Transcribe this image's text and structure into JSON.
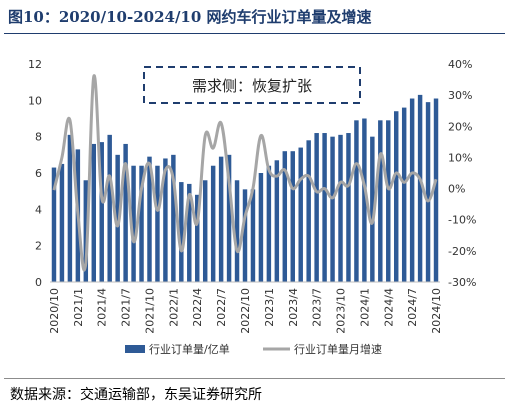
{
  "title": "图10：2020/10-2024/10 网约车行业订单量及增速",
  "source": "数据来源：交通运输部，东吴证券研究所",
  "chart_data": {
    "type": "bar+line",
    "annotation": "需求侧：恢复扩张",
    "x_tick_labels": [
      "2020/10",
      "2021/1",
      "2021/4",
      "2021/7",
      "2021/10",
      "2022/1",
      "2022/4",
      "2022/7",
      "2022/10",
      "2023/1",
      "2023/4",
      "2023/7",
      "2023/10",
      "2024/1",
      "2024/4",
      "2024/7",
      "2024/10"
    ],
    "categories": [
      "2020/10",
      "2020/11",
      "2020/12",
      "2021/1",
      "2021/2",
      "2021/3",
      "2021/4",
      "2021/5",
      "2021/6",
      "2021/7",
      "2021/8",
      "2021/9",
      "2021/10",
      "2021/11",
      "2021/12",
      "2022/1",
      "2022/2",
      "2022/3",
      "2022/4",
      "2022/5",
      "2022/6",
      "2022/7",
      "2022/8",
      "2022/9",
      "2022/10",
      "2022/11",
      "2022/12",
      "2023/1",
      "2023/2",
      "2023/3",
      "2023/4",
      "2023/5",
      "2023/6",
      "2023/7",
      "2023/8",
      "2023/9",
      "2023/10",
      "2023/11",
      "2023/12",
      "2024/1",
      "2024/2",
      "2024/3",
      "2024/4",
      "2024/5",
      "2024/6",
      "2024/7",
      "2024/8",
      "2024/9",
      "2024/10"
    ],
    "series": [
      {
        "name": "行业订单量/亿单",
        "axis": "left",
        "color": "#2e5a96",
        "values": [
          6.3,
          6.5,
          8.1,
          7.3,
          5.6,
          7.6,
          7.7,
          8.1,
          7.0,
          7.6,
          6.4,
          6.4,
          6.9,
          6.4,
          6.8,
          7.0,
          5.5,
          5.4,
          4.8,
          5.6,
          6.4,
          6.9,
          7.0,
          5.6,
          5.1,
          5.1,
          6.0,
          6.4,
          6.7,
          7.2,
          7.2,
          7.4,
          7.8,
          8.2,
          8.2,
          8.0,
          8.1,
          8.2,
          8.9,
          9.0,
          8.0,
          8.9,
          8.9,
          9.4,
          9.6,
          10.1,
          10.3,
          9.9,
          10.1
        ]
      },
      {
        "name": "行业订单量月增速",
        "axis": "right",
        "color": "#a6a6a6",
        "values": [
          -0.5,
          10.0,
          22.0,
          -8.0,
          -24.0,
          36.0,
          -3.0,
          4.0,
          -12.0,
          8.0,
          -17.0,
          0.0,
          8.0,
          -7.0,
          6.0,
          3.0,
          -20.0,
          -2.0,
          -11.0,
          17.0,
          13.0,
          21.0,
          2.0,
          -20.0,
          -9.0,
          0.0,
          17.0,
          6.0,
          4.0,
          6.0,
          0.0,
          3.0,
          4.0,
          -1.0,
          0.0,
          -3.0,
          2.0,
          1.0,
          8.0,
          1.0,
          -11.0,
          11.0,
          0.0,
          5.0,
          2.0,
          5.0,
          3.0,
          -4.0,
          3.0
        ]
      }
    ],
    "y_left": {
      "min": 0,
      "max": 12,
      "ticks": [
        0,
        2,
        4,
        6,
        8,
        10,
        12
      ]
    },
    "y_right": {
      "min": -30,
      "max": 40,
      "ticks": [
        "-30%",
        "-20%",
        "-10%",
        "0%",
        "10%",
        "20%",
        "30%",
        "40%"
      ]
    },
    "legend_position": "bottom"
  }
}
